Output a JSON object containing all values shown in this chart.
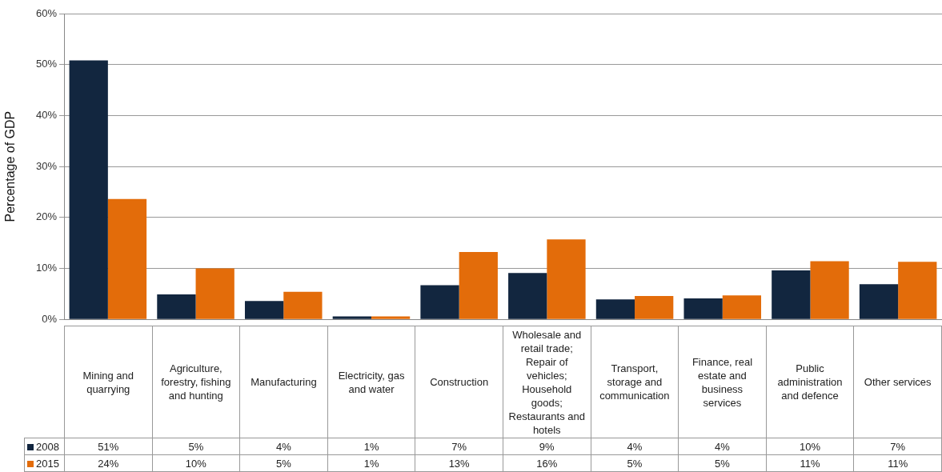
{
  "chart_data": {
    "type": "bar",
    "ylabel": "Percentage of GDP",
    "categories": [
      "Mining and quarrying",
      "Agriculture, forestry, fishing and hunting",
      "Manufacturing",
      "Electricity, gas and water",
      "Construction",
      "Wholesale and retail trade; Repair of vehicles; Household goods; Restaurants and hotels",
      "Transport, storage and communication",
      "Finance, real estate and business services",
      "Public administration and defence",
      "Other services"
    ],
    "series": [
      {
        "name": "2008",
        "color": "#12263f",
        "values": [
          50.8,
          4.9,
          3.6,
          0.6,
          6.7,
          9.1,
          3.9,
          4.1,
          9.6,
          6.9
        ],
        "value_labels": [
          "51%",
          "5%",
          "4%",
          "1%",
          "7%",
          "9%",
          "4%",
          "4%",
          "10%",
          "7%"
        ]
      },
      {
        "name": "2015",
        "color": "#e36c0a",
        "values": [
          23.6,
          10.0,
          5.4,
          0.6,
          13.2,
          15.7,
          4.6,
          4.7,
          11.4,
          11.3
        ],
        "value_labels": [
          "24%",
          "10%",
          "5%",
          "1%",
          "13%",
          "16%",
          "5%",
          "5%",
          "11%",
          "11%"
        ]
      }
    ],
    "ylim": [
      0,
      60
    ],
    "yticks": [
      {
        "value": 0,
        "label": "0%"
      },
      {
        "value": 10,
        "label": "10%"
      },
      {
        "value": 20,
        "label": "20%"
      },
      {
        "value": 30,
        "label": "30%"
      },
      {
        "value": 40,
        "label": "40%"
      },
      {
        "value": 50,
        "label": "50%"
      },
      {
        "value": 60,
        "label": "60%"
      }
    ],
    "grid": "y",
    "legend": "bottom left"
  }
}
